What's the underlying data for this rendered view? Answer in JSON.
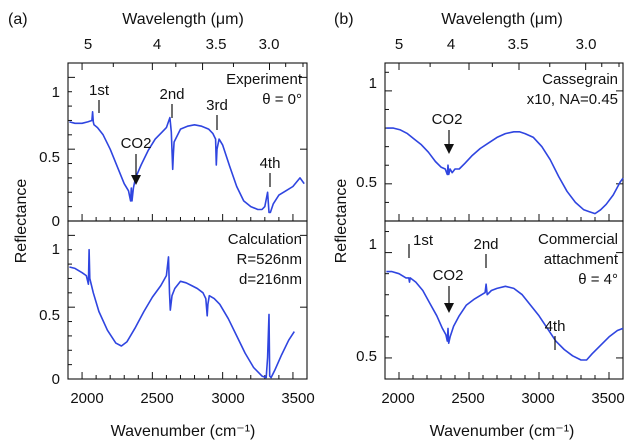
{
  "figure": {
    "panel_a_letter": "(a)",
    "panel_b_letter": "(b)",
    "wavelength_axis_label": "Wavelength (μm)",
    "wavenumber_axis_label": "Wavenumber (cm⁻¹)",
    "y_axis_label": "Reflectance",
    "series_color": "#2f45e0"
  },
  "chart_data": [
    {
      "type": "line",
      "id": "a-top",
      "annotation_lines": [
        "Experiment",
        "θ = 0°"
      ],
      "xlabel": "Wavenumber (cm⁻¹)",
      "secondary_xlabel": "Wavelength (μm)",
      "secondary_x_ticks": [
        "5",
        "4",
        "3.5",
        "3.0"
      ],
      "ylabel": "Reflectance",
      "xlim": [
        1900,
        3600
      ],
      "ylim": [
        0,
        1.1
      ],
      "y_ticks": [
        "0",
        "0.5",
        "1"
      ],
      "peak_labels": [
        "1st",
        "2nd",
        "3rd",
        "4th"
      ],
      "co2_label": "CO2",
      "x": [
        1910,
        1950,
        2000,
        2040,
        2070,
        2075,
        2080,
        2085,
        2110,
        2150,
        2200,
        2250,
        2300,
        2330,
        2345,
        2350,
        2355,
        2365,
        2380,
        2420,
        2470,
        2520,
        2570,
        2600,
        2625,
        2635,
        2645,
        2650,
        2655,
        2700,
        2750,
        2800,
        2850,
        2900,
        2930,
        2950,
        2955,
        2960,
        2975,
        3000,
        3050,
        3100,
        3150,
        3200,
        3250,
        3280,
        3300,
        3320,
        3330,
        3340,
        3360,
        3400,
        3450,
        3500,
        3550,
        3580
      ],
      "y": [
        0.69,
        0.68,
        0.68,
        0.69,
        0.7,
        0.76,
        0.69,
        0.67,
        0.65,
        0.6,
        0.5,
        0.38,
        0.26,
        0.21,
        0.14,
        0.23,
        0.14,
        0.23,
        0.3,
        0.39,
        0.49,
        0.57,
        0.62,
        0.65,
        0.72,
        0.62,
        0.36,
        0.47,
        0.55,
        0.64,
        0.66,
        0.67,
        0.66,
        0.64,
        0.61,
        0.57,
        0.39,
        0.5,
        0.57,
        0.53,
        0.38,
        0.24,
        0.14,
        0.1,
        0.08,
        0.08,
        0.1,
        0.2,
        0.06,
        0.06,
        0.12,
        0.18,
        0.21,
        0.24,
        0.3,
        0.26
      ]
    },
    {
      "type": "line",
      "id": "a-bottom",
      "annotation_lines": [
        "Calculation",
        "R=526nm",
        "d=216nm"
      ],
      "xlabel": "Wavenumber (cm⁻¹)",
      "ylabel": "Reflectance",
      "xlim": [
        1900,
        3600
      ],
      "ylim": [
        0,
        1.1
      ],
      "y_ticks": [
        "0",
        "0.5",
        "1"
      ],
      "x_ticks": [
        "2000",
        "2500",
        "3000",
        "3500"
      ],
      "x": [
        1910,
        1950,
        2000,
        2030,
        2045,
        2050,
        2055,
        2080,
        2120,
        2180,
        2240,
        2280,
        2320,
        2380,
        2440,
        2500,
        2560,
        2600,
        2615,
        2622,
        2628,
        2640,
        2660,
        2700,
        2740,
        2780,
        2820,
        2860,
        2880,
        2890,
        2895,
        2905,
        2940,
        2980,
        3040,
        3100,
        3160,
        3220,
        3280,
        3310,
        3320,
        3330,
        3335,
        3345,
        3370,
        3420,
        3470,
        3510
      ],
      "y": [
        0.78,
        0.77,
        0.74,
        0.72,
        0.66,
        0.9,
        0.7,
        0.6,
        0.47,
        0.34,
        0.25,
        0.23,
        0.26,
        0.36,
        0.47,
        0.57,
        0.65,
        0.72,
        0.85,
        0.6,
        0.48,
        0.58,
        0.63,
        0.68,
        0.67,
        0.65,
        0.63,
        0.6,
        0.56,
        0.44,
        0.52,
        0.58,
        0.56,
        0.52,
        0.42,
        0.3,
        0.18,
        0.08,
        0.02,
        0.01,
        0.15,
        0.45,
        0.02,
        0.01,
        0.06,
        0.17,
        0.27,
        0.33
      ]
    },
    {
      "type": "line",
      "id": "b-top",
      "annotation_lines": [
        "Cassegrain",
        "x10, NA=0.45"
      ],
      "xlabel": "Wavenumber (cm⁻¹)",
      "secondary_xlabel": "Wavelength (μm)",
      "secondary_x_ticks": [
        "5",
        "4",
        "3.5",
        "3.0"
      ],
      "ylabel": "Reflectance",
      "xlim": [
        1900,
        3600
      ],
      "ylim": [
        0.3,
        1.15
      ],
      "y_ticks": [
        "0.5",
        "1"
      ],
      "co2_label": "CO2",
      "x": [
        1910,
        1960,
        2010,
        2060,
        2110,
        2160,
        2210,
        2260,
        2300,
        2330,
        2345,
        2350,
        2355,
        2365,
        2380,
        2400,
        2430,
        2470,
        2520,
        2580,
        2640,
        2700,
        2760,
        2820,
        2860,
        2900,
        2960,
        3020,
        3080,
        3140,
        3200,
        3260,
        3320,
        3360,
        3400,
        3440,
        3480,
        3530,
        3580,
        3600
      ],
      "y": [
        0.8,
        0.8,
        0.79,
        0.77,
        0.74,
        0.71,
        0.67,
        0.62,
        0.59,
        0.58,
        0.55,
        0.6,
        0.55,
        0.58,
        0.56,
        0.58,
        0.58,
        0.61,
        0.65,
        0.69,
        0.72,
        0.75,
        0.77,
        0.78,
        0.78,
        0.77,
        0.75,
        0.7,
        0.63,
        0.54,
        0.46,
        0.4,
        0.36,
        0.35,
        0.34,
        0.36,
        0.39,
        0.44,
        0.51,
        0.53
      ]
    },
    {
      "type": "line",
      "id": "b-bottom",
      "annotation_lines": [
        "Commercial",
        "attachment",
        "θ = 4°"
      ],
      "xlabel": "Wavenumber (cm⁻¹)",
      "ylabel": "Reflectance",
      "xlim": [
        1900,
        3600
      ],
      "ylim": [
        0.4,
        1.15
      ],
      "y_ticks": [
        "0.5",
        "1"
      ],
      "x_ticks": [
        "2000",
        "2500",
        "3000",
        "3500"
      ],
      "peak_labels": [
        "1st",
        "2nd",
        "4th"
      ],
      "co2_label": "CO2",
      "x": [
        1910,
        1950,
        2000,
        2050,
        2070,
        2075,
        2080,
        2120,
        2170,
        2220,
        2270,
        2310,
        2335,
        2345,
        2350,
        2355,
        2365,
        2390,
        2430,
        2480,
        2540,
        2590,
        2615,
        2622,
        2630,
        2660,
        2700,
        2760,
        2820,
        2880,
        2940,
        3000,
        3060,
        3120,
        3180,
        3240,
        3300,
        3340,
        3380,
        3440,
        3500,
        3560,
        3600
      ],
      "y": [
        0.91,
        0.91,
        0.9,
        0.88,
        0.88,
        0.86,
        0.88,
        0.86,
        0.82,
        0.76,
        0.7,
        0.64,
        0.61,
        0.58,
        0.64,
        0.57,
        0.6,
        0.65,
        0.7,
        0.75,
        0.78,
        0.8,
        0.81,
        0.85,
        0.8,
        0.82,
        0.83,
        0.84,
        0.83,
        0.8,
        0.75,
        0.7,
        0.64,
        0.58,
        0.54,
        0.51,
        0.49,
        0.49,
        0.52,
        0.56,
        0.6,
        0.63,
        0.64
      ]
    }
  ]
}
